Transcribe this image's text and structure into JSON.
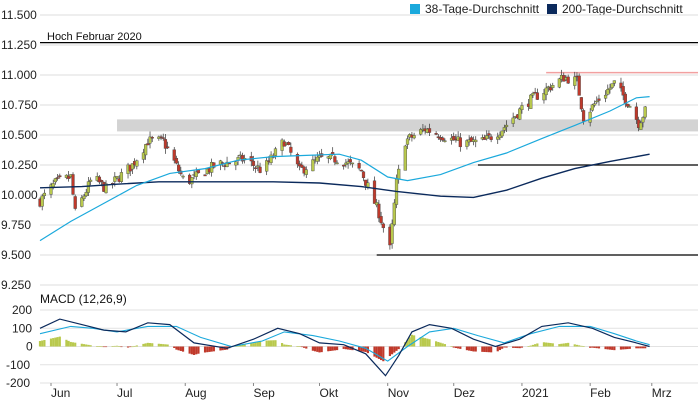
{
  "chart_data": [
    {
      "type": "candlestick",
      "title": "",
      "xlabel": "",
      "ylabel": "",
      "ylim": [
        9250,
        11500
      ],
      "yticks": [
        "11.500",
        "11.250",
        "11.000",
        "10.750",
        "10.500",
        "10.250",
        "10.000",
        "9.750",
        "9.500",
        "9.250"
      ],
      "ytick_values": [
        11500,
        11250,
        11000,
        10750,
        10500,
        10250,
        10000,
        9750,
        9500,
        9250
      ],
      "xticks": [
        "Jun",
        "Jul",
        "Aug",
        "Sep",
        "Okt",
        "Nov",
        "Dez",
        "2021",
        "Feb",
        "Mrz"
      ],
      "xtick_positions": [
        "2020-06-01",
        "2020-07-01",
        "2020-08-01",
        "2020-09-01",
        "2020-10-01",
        "2020-11-01",
        "2020-12-01",
        "2021-01-01",
        "2021-02-01",
        "2021-03-01"
      ],
      "grid": "horizontal",
      "legend_position": "top-right",
      "legend": [
        {
          "name": "38-Tage-Durchschnitt",
          "color": "#1ba9dc"
        },
        {
          "name": "200-Tage-Durchschnitt",
          "color": "#0b2a5c"
        }
      ],
      "annotation": "Hoch Februar 2020",
      "hoch_level": 11270,
      "support_zone": {
        "from": 10530,
        "to": 10630,
        "start": "2020-07-01"
      },
      "resistance_level": 11020,
      "support_line_2": 10250,
      "support_line_3": 9500,
      "colors": {
        "up": "#b9c94d",
        "down": "#c0392b",
        "ma38": "#1ba9dc",
        "ma200": "#0b2a5c",
        "zone": "#d3d3d3",
        "resistance": "#f2a0a0"
      },
      "ma38": {
        "name": "38-Tage-Durchschnitt",
        "points": [
          [
            "2020-05-27",
            9620
          ],
          [
            "2020-06-10",
            9780
          ],
          [
            "2020-06-25",
            9930
          ],
          [
            "2020-07-10",
            10080
          ],
          [
            "2020-07-25",
            10180
          ],
          [
            "2020-08-10",
            10220
          ],
          [
            "2020-08-25",
            10290
          ],
          [
            "2020-09-10",
            10320
          ],
          [
            "2020-09-25",
            10330
          ],
          [
            "2020-10-10",
            10340
          ],
          [
            "2020-10-20",
            10290
          ],
          [
            "2020-11-01",
            10150
          ],
          [
            "2020-11-10",
            10120
          ],
          [
            "2020-11-25",
            10170
          ],
          [
            "2020-12-10",
            10270
          ],
          [
            "2020-12-25",
            10350
          ],
          [
            "2021-01-10",
            10470
          ],
          [
            "2021-01-25",
            10580
          ],
          [
            "2021-02-10",
            10700
          ],
          [
            "2021-02-22",
            10810
          ],
          [
            "2021-02-28",
            10820
          ]
        ]
      },
      "ma200": {
        "name": "200-Tage-Durchschnitt",
        "points": [
          [
            "2020-05-27",
            10060
          ],
          [
            "2020-06-15",
            10070
          ],
          [
            "2020-07-01",
            10090
          ],
          [
            "2020-07-20",
            10110
          ],
          [
            "2020-08-15",
            10110
          ],
          [
            "2020-09-10",
            10110
          ],
          [
            "2020-10-01",
            10100
          ],
          [
            "2020-10-20",
            10070
          ],
          [
            "2020-11-05",
            10030
          ],
          [
            "2020-11-25",
            9990
          ],
          [
            "2020-12-10",
            9980
          ],
          [
            "2020-12-25",
            10040
          ],
          [
            "2021-01-10",
            10140
          ],
          [
            "2021-01-25",
            10220
          ],
          [
            "2021-02-10",
            10280
          ],
          [
            "2021-02-28",
            10340
          ]
        ]
      },
      "ohlc_anchors": [
        [
          "2020-05-27",
          9950
        ],
        [
          "2020-06-03",
          10100
        ],
        [
          "2020-06-10",
          10150
        ],
        [
          "2020-06-12",
          9850
        ],
        [
          "2020-06-20",
          10150
        ],
        [
          "2020-06-26",
          10050
        ],
        [
          "2020-07-08",
          10250
        ],
        [
          "2020-07-15",
          10450
        ],
        [
          "2020-07-22",
          10450
        ],
        [
          "2020-08-01",
          10100
        ],
        [
          "2020-08-15",
          10250
        ],
        [
          "2020-08-28",
          10300
        ],
        [
          "2020-09-05",
          10200
        ],
        [
          "2020-09-15",
          10450
        ],
        [
          "2020-09-22",
          10200
        ],
        [
          "2020-10-01",
          10300
        ],
        [
          "2020-10-10",
          10300
        ],
        [
          "2020-10-20",
          10200
        ],
        [
          "2020-10-28",
          9850
        ],
        [
          "2020-11-02",
          9550
        ],
        [
          "2020-11-05",
          10100
        ],
        [
          "2020-11-09",
          10450
        ],
        [
          "2020-11-18",
          10550
        ],
        [
          "2020-11-25",
          10500
        ],
        [
          "2020-12-05",
          10430
        ],
        [
          "2020-12-15",
          10450
        ],
        [
          "2020-12-23",
          10550
        ],
        [
          "2021-01-04",
          10780
        ],
        [
          "2021-01-12",
          10880
        ],
        [
          "2021-01-20",
          10980
        ],
        [
          "2021-01-26",
          10950
        ],
        [
          "2021-01-29",
          10650
        ],
        [
          "2021-02-05",
          10800
        ],
        [
          "2021-02-12",
          10930
        ],
        [
          "2021-02-19",
          10750
        ],
        [
          "2021-02-23",
          10600
        ],
        [
          "2021-02-26",
          10700
        ]
      ]
    },
    {
      "type": "macd",
      "title": "MACD (12,26,9)",
      "ylim": [
        -200,
        200
      ],
      "yticks": [
        "200",
        "100",
        "0",
        "-100",
        "-200"
      ],
      "ytick_values": [
        200,
        100,
        0,
        -100,
        -200
      ],
      "macd_line": [
        [
          "2020-05-27",
          100
        ],
        [
          "2020-06-05",
          150
        ],
        [
          "2020-06-15",
          120
        ],
        [
          "2020-06-25",
          90
        ],
        [
          "2020-07-05",
          80
        ],
        [
          "2020-07-15",
          130
        ],
        [
          "2020-07-25",
          120
        ],
        [
          "2020-08-05",
          20
        ],
        [
          "2020-08-20",
          -10
        ],
        [
          "2020-09-01",
          40
        ],
        [
          "2020-09-12",
          100
        ],
        [
          "2020-09-22",
          70
        ],
        [
          "2020-10-01",
          20
        ],
        [
          "2020-10-12",
          10
        ],
        [
          "2020-10-22",
          -40
        ],
        [
          "2020-10-31",
          -160
        ],
        [
          "2020-11-06",
          -50
        ],
        [
          "2020-11-12",
          80
        ],
        [
          "2020-11-20",
          120
        ],
        [
          "2020-11-30",
          100
        ],
        [
          "2020-12-10",
          40
        ],
        [
          "2020-12-20",
          0
        ],
        [
          "2020-12-31",
          40
        ],
        [
          "2021-01-10",
          110
        ],
        [
          "2021-01-22",
          130
        ],
        [
          "2021-02-02",
          100
        ],
        [
          "2021-02-12",
          50
        ],
        [
          "2021-02-22",
          20
        ],
        [
          "2021-02-28",
          0
        ]
      ],
      "signal_line": [
        [
          "2020-05-27",
          70
        ],
        [
          "2020-06-10",
          110
        ],
        [
          "2020-06-20",
          100
        ],
        [
          "2020-07-01",
          80
        ],
        [
          "2020-07-15",
          110
        ],
        [
          "2020-07-28",
          110
        ],
        [
          "2020-08-08",
          50
        ],
        [
          "2020-08-22",
          0
        ],
        [
          "2020-09-05",
          30
        ],
        [
          "2020-09-15",
          80
        ],
        [
          "2020-09-28",
          60
        ],
        [
          "2020-10-10",
          30
        ],
        [
          "2020-10-22",
          -10
        ],
        [
          "2020-11-01",
          -80
        ],
        [
          "2020-11-10",
          0
        ],
        [
          "2020-11-20",
          80
        ],
        [
          "2020-12-01",
          100
        ],
        [
          "2020-12-12",
          60
        ],
        [
          "2020-12-24",
          20
        ],
        [
          "2021-01-05",
          70
        ],
        [
          "2021-01-18",
          110
        ],
        [
          "2021-02-01",
          110
        ],
        [
          "2021-02-12",
          70
        ],
        [
          "2021-02-22",
          30
        ],
        [
          "2021-02-28",
          10
        ]
      ]
    }
  ]
}
